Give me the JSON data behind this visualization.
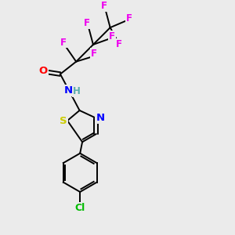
{
  "bg_color": "#ebebeb",
  "atom_colors": {
    "C": "#000000",
    "H": "#5aacac",
    "N": "#0000ff",
    "O": "#ff0000",
    "S": "#cccc00",
    "F": "#ee00ee",
    "Cl": "#00bb00"
  },
  "figsize": [
    3.0,
    3.0
  ],
  "dpi": 100,
  "lw": 1.4,
  "fs": 8.5
}
